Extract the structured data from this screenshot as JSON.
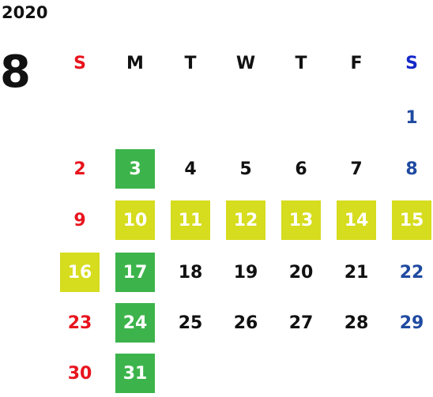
{
  "year": "2020",
  "month": "8",
  "weekdays": [
    "S",
    "M",
    "T",
    "W",
    "T",
    "F",
    "S"
  ],
  "weekday_colors": [
    "#e8141d",
    "#111111",
    "#111111",
    "#111111",
    "#111111",
    "#111111",
    "#1428c8"
  ],
  "colors": {
    "sunday": "#e8141d",
    "saturday": "#1f4aa0",
    "weekday": "#111111",
    "highlight_green": "#3cb44b",
    "highlight_lime": "#d6dc1e",
    "highlight_text": "#ffffff"
  },
  "weeks": [
    [
      null,
      null,
      null,
      null,
      null,
      null,
      {
        "day": "1"
      }
    ],
    [
      {
        "day": "2"
      },
      {
        "day": "3",
        "highlight": "green"
      },
      {
        "day": "4"
      },
      {
        "day": "5"
      },
      {
        "day": "6"
      },
      {
        "day": "7"
      },
      {
        "day": "8"
      }
    ],
    [
      {
        "day": "9"
      },
      {
        "day": "10",
        "highlight": "lime"
      },
      {
        "day": "11",
        "highlight": "lime"
      },
      {
        "day": "12",
        "highlight": "lime"
      },
      {
        "day": "13",
        "highlight": "lime"
      },
      {
        "day": "14",
        "highlight": "lime"
      },
      {
        "day": "15",
        "highlight": "lime"
      }
    ],
    [
      {
        "day": "16",
        "highlight": "lime"
      },
      {
        "day": "17",
        "highlight": "green"
      },
      {
        "day": "18"
      },
      {
        "day": "19"
      },
      {
        "day": "20"
      },
      {
        "day": "21"
      },
      {
        "day": "22"
      }
    ],
    [
      {
        "day": "23"
      },
      {
        "day": "24",
        "highlight": "green"
      },
      {
        "day": "25"
      },
      {
        "day": "26"
      },
      {
        "day": "27"
      },
      {
        "day": "28"
      },
      {
        "day": "29"
      }
    ],
    [
      {
        "day": "30"
      },
      {
        "day": "31",
        "highlight": "green"
      },
      null,
      null,
      null,
      null,
      null
    ]
  ]
}
